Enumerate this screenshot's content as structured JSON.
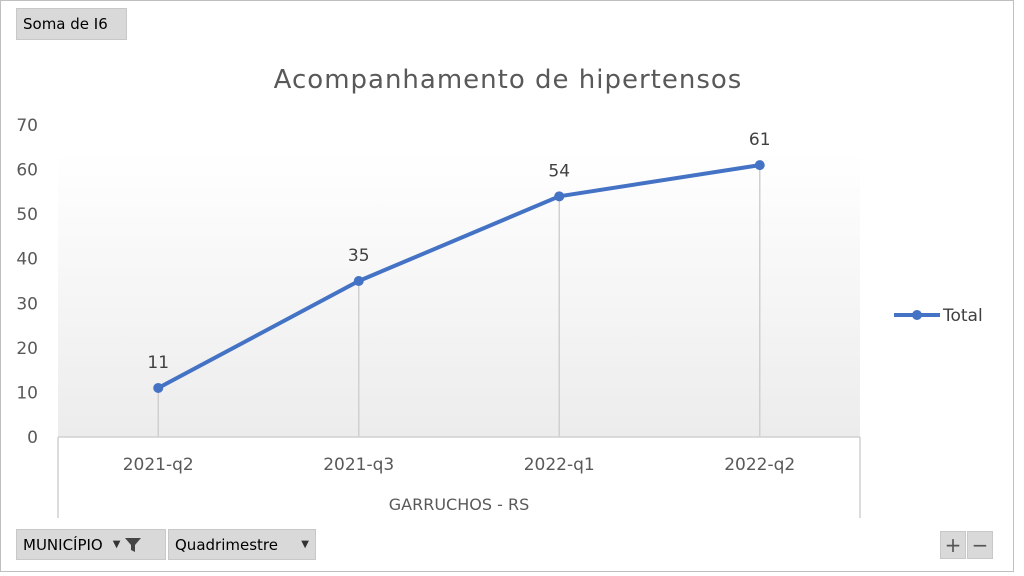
{
  "controls": {
    "value_field": "Soma de I6",
    "municipio_field": "MUNICÍPIO",
    "quadrimestre_field": "Quadrimestre",
    "zoom_in": "+",
    "zoom_out": "−"
  },
  "chart_data": {
    "type": "line",
    "title": "Acompanhamento de hipertensos",
    "categories": [
      "2021-q2",
      "2021-q3",
      "2022-q1",
      "2022-q2"
    ],
    "group_label": "GARRUCHOS - RS",
    "series": [
      {
        "name": "Total",
        "values": [
          11,
          35,
          54,
          61
        ],
        "color": "#4472C4"
      }
    ],
    "ylim": [
      0,
      70
    ],
    "yticks": [
      0,
      10,
      20,
      30,
      40,
      50,
      60,
      70
    ],
    "legend_position": "right",
    "data_labels": true,
    "grid": false,
    "drop_lines": true
  }
}
